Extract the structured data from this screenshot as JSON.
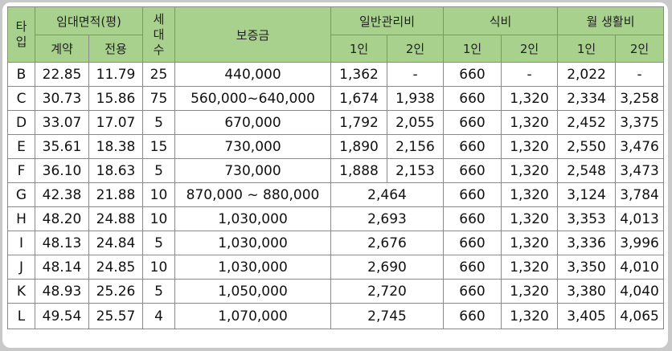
{
  "header": {
    "type": "타\n입",
    "area": "임대면적(평)",
    "area_contract": "계약",
    "area_exclusive": "전용",
    "households": "세\n대\n수",
    "deposit": "보증금",
    "general_fee": "일반관리비",
    "meal_fee": "식비",
    "monthly_living": "월 생활비",
    "one_person": "1인",
    "two_person": "2인"
  },
  "rows": [
    {
      "type": "B",
      "contract": "22.85",
      "exclusive": "11.79",
      "households": "25",
      "deposit": "440,000",
      "fee1": "1,362",
      "fee2": "-",
      "meal1": "660",
      "meal2": "-",
      "living1": "2,022",
      "living2": "-"
    },
    {
      "type": "C",
      "contract": "30.73",
      "exclusive": "15.86",
      "households": "75",
      "deposit": "560,000~640,000",
      "fee1": "1,674",
      "fee2": "1,938",
      "meal1": "660",
      "meal2": "1,320",
      "living1": "2,334",
      "living2": "3,258"
    },
    {
      "type": "D",
      "contract": "33.07",
      "exclusive": "17.07",
      "households": "5",
      "deposit": "670,000",
      "fee1": "1,792",
      "fee2": "2,055",
      "meal1": "660",
      "meal2": "1,320",
      "living1": "2,452",
      "living2": "3,375"
    },
    {
      "type": "E",
      "contract": "35.61",
      "exclusive": "18.38",
      "households": "15",
      "deposit": "730,000",
      "fee1": "1,890",
      "fee2": "2,156",
      "meal1": "660",
      "meal2": "1,320",
      "living1": "2,550",
      "living2": "3,476"
    },
    {
      "type": "F",
      "contract": "36.10",
      "exclusive": "18.63",
      "households": "5",
      "deposit": "730,000",
      "fee1": "1,888",
      "fee2": "2,153",
      "meal1": "660",
      "meal2": "1,320",
      "living1": "2,548",
      "living2": "3,473"
    },
    {
      "type": "G",
      "contract": "42.38",
      "exclusive": "21.88",
      "households": "10",
      "deposit": "870,000 ~ 880,000",
      "fee": "2,464",
      "meal1": "660",
      "meal2": "1,320",
      "living1": "3,124",
      "living2": "3,784"
    },
    {
      "type": "H",
      "contract": "48.20",
      "exclusive": "24.88",
      "households": "10",
      "deposit": "1,030,000",
      "fee": "2,693",
      "meal1": "660",
      "meal2": "1,320",
      "living1": "3,353",
      "living2": "4,013"
    },
    {
      "type": "I",
      "contract": "48.13",
      "exclusive": "24.84",
      "households": "5",
      "deposit": "1,030,000",
      "fee": "2,676",
      "meal1": "660",
      "meal2": "1,320",
      "living1": "3,336",
      "living2": "3,996"
    },
    {
      "type": "J",
      "contract": "48.14",
      "exclusive": "24.85",
      "households": "10",
      "deposit": "1,030,000",
      "fee": "2,690",
      "meal1": "660",
      "meal2": "1,320",
      "living1": "3,350",
      "living2": "4,010"
    },
    {
      "type": "K",
      "contract": "48.93",
      "exclusive": "25.26",
      "households": "5",
      "deposit": "1,050,000",
      "fee": "2,720",
      "meal1": "660",
      "meal2": "1,320",
      "living1": "3,380",
      "living2": "4,040"
    },
    {
      "type": "L",
      "contract": "49.54",
      "exclusive": "25.57",
      "households": "4",
      "deposit": "1,070,000",
      "fee": "2,745",
      "meal1": "660",
      "meal2": "1,320",
      "living1": "3,405",
      "living2": "4,065"
    }
  ]
}
